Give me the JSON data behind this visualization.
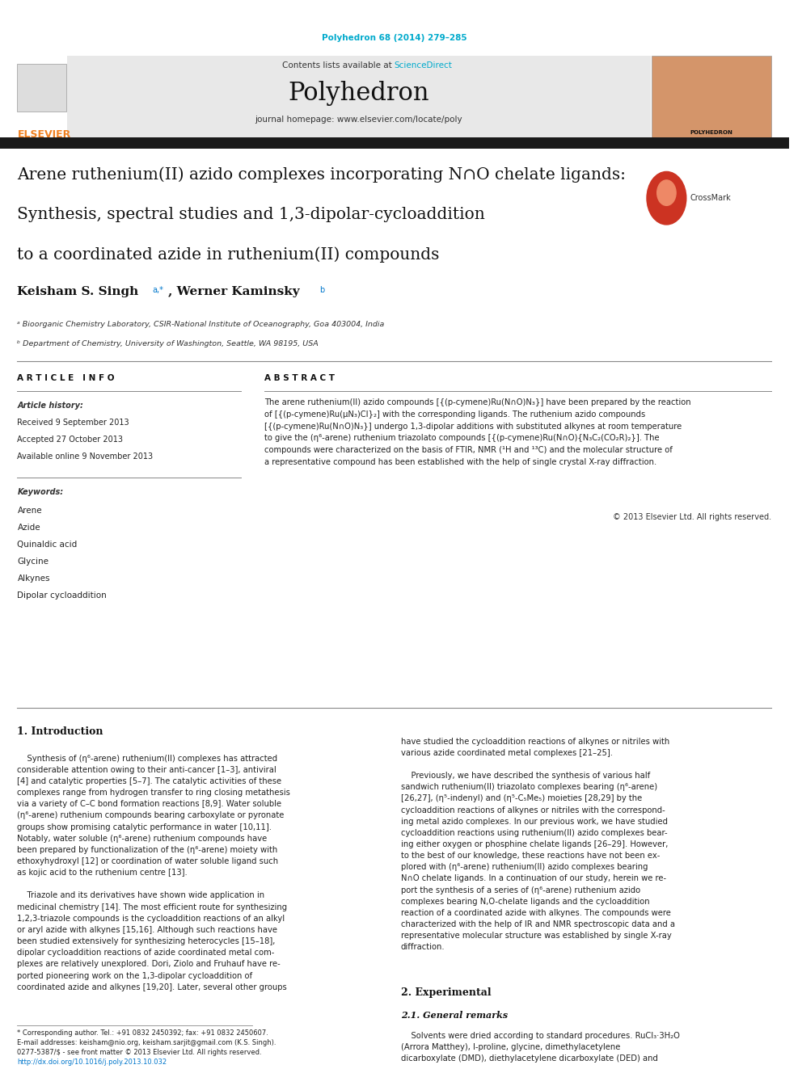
{
  "page_width": 9.92,
  "page_height": 13.23,
  "bg_color": "#ffffff",
  "header_journal_ref": "Polyhedron 68 (2014) 279–285",
  "header_journal_ref_color": "#00aacc",
  "journal_name": "Polyhedron",
  "contents_text": "Contents lists available at ",
  "science_direct": "ScienceDirect",
  "science_direct_color": "#00aacc",
  "journal_homepage": "journal homepage: www.elsevier.com/locate/poly",
  "header_bg": "#e8e8e8",
  "dark_bar_color": "#1a1a1a",
  "elsevier_color": "#f08020",
  "affil_a": "ᵃ Bioorganic Chemistry Laboratory, CSIR-National Institute of Oceanography, Goa 403004, India",
  "affil_b": "ᵇ Department of Chemistry, University of Washington, Seattle, WA 98195, USA",
  "article_info_header": "A R T I C L E   I N F O",
  "abstract_header": "A B S T R A C T",
  "article_history_label": "Article history:",
  "received": "Received 9 September 2013",
  "accepted": "Accepted 27 October 2013",
  "available": "Available online 9 November 2013",
  "keywords_label": "Keywords:",
  "keywords": [
    "Arene",
    "Azide",
    "Quinaldic acid",
    "Glycine",
    "Alkynes",
    "Dipolar cycloaddition"
  ],
  "copyright": "© 2013 Elsevier Ltd. All rights reserved.",
  "intro_header": "1. Introduction",
  "section2_header": "2. Experimental",
  "section21_header": "2.1. General remarks",
  "footnote_star": "* Corresponding author. Tel.: +91 0832 2450392; fax: +91 0832 2450607.",
  "footnote_email": "E-mail addresses: keisham@nio.org, keisham.sarjit@gmail.com (K.S. Singh).",
  "footnote_issn": "0277-5387/$ - see front matter © 2013 Elsevier Ltd. All rights reserved.",
  "footnote_doi": "http://dx.doi.org/10.1016/j.poly.2013.10.032",
  "link_color": "#0077cc"
}
